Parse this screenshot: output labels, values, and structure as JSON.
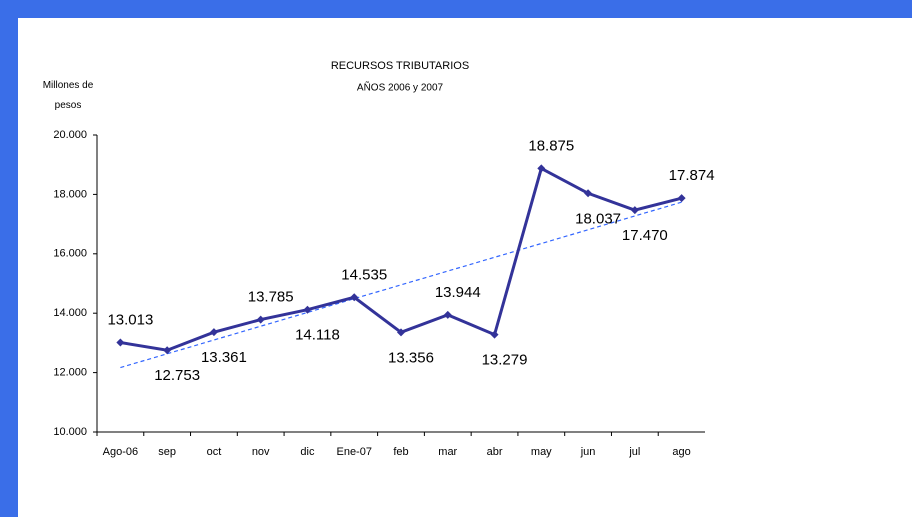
{
  "chart_data": {
    "type": "line",
    "title": "RECURSOS TRIBUTARIOS",
    "subtitle": "AÑOS 2006 y 2007",
    "y_label": "Millones de pesos",
    "categories": [
      "Ago-06",
      "sep",
      "oct",
      "nov",
      "dic",
      "Ene-07",
      "feb",
      "mar",
      "abr",
      "may",
      "jun",
      "jul",
      "ago"
    ],
    "series": [
      {
        "name": "Recursos tributarios",
        "color": "#333399",
        "values": [
          13013,
          12753,
          13361,
          13785,
          14118,
          14535,
          13356,
          13944,
          13279,
          18875,
          18037,
          17470,
          17874
        ],
        "value_labels": [
          "13.013",
          "12.753",
          "13.361",
          "13.785",
          "14.118",
          "14.535",
          "13.356",
          "13.944",
          "13.279",
          "18.875",
          "18.037",
          "17.470",
          "17.874"
        ]
      }
    ],
    "trendline": {
      "type": "linear",
      "color": "#3366ff"
    },
    "ylim": [
      10000,
      20000
    ],
    "yticks": [
      {
        "value": 10000,
        "label": "10.000"
      },
      {
        "value": 12000,
        "label": "12.000"
      },
      {
        "value": 14000,
        "label": "14.000"
      },
      {
        "value": 16000,
        "label": "16.000"
      },
      {
        "value": 18000,
        "label": "18.000"
      },
      {
        "value": 20000,
        "label": "20.000"
      }
    ],
    "grid": false
  }
}
